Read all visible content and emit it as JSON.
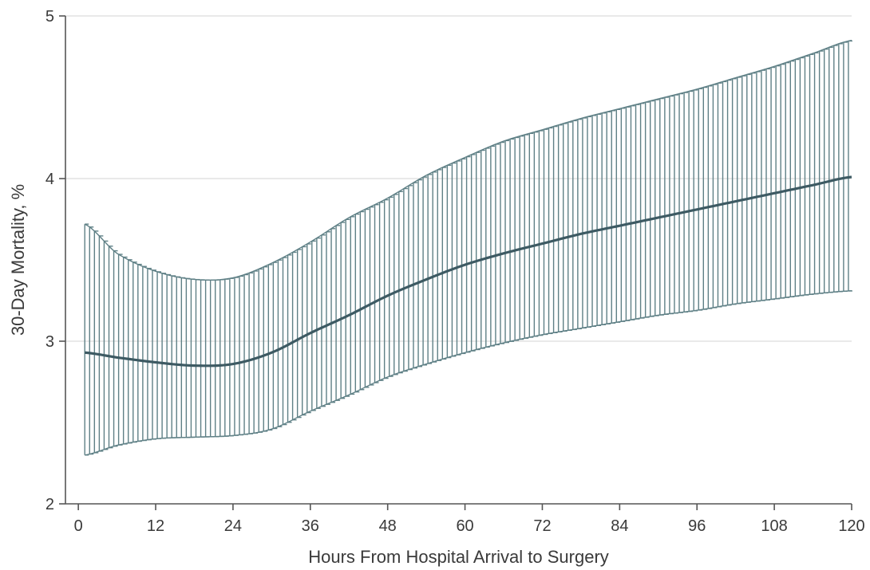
{
  "chart_data": {
    "type": "line",
    "xlabel": "Hours From Hospital Arrival to Surgery",
    "ylabel": "30-Day Mortality, %",
    "xlim": [
      -2,
      120
    ],
    "ylim": [
      2,
      5
    ],
    "xticks": [
      0,
      12,
      24,
      36,
      48,
      60,
      72,
      84,
      96,
      108,
      120
    ],
    "yticks": [
      2,
      3,
      4,
      5
    ],
    "grid": "horizontal",
    "legend": "none",
    "colors": {
      "line": "#3d5a63",
      "ci": "#5f8086",
      "grid": "#dcdcdc",
      "axis": "#555555"
    },
    "series": [
      {
        "x": [
          1,
          6,
          12,
          18,
          24,
          30,
          36,
          42,
          48,
          54,
          60,
          66,
          72,
          78,
          84,
          90,
          96,
          102,
          108,
          114,
          120
        ],
        "y": [
          2.93,
          2.9,
          2.87,
          2.85,
          2.86,
          2.93,
          3.05,
          3.16,
          3.28,
          3.38,
          3.47,
          3.54,
          3.6,
          3.66,
          3.71,
          3.76,
          3.81,
          3.86,
          3.91,
          3.96,
          4.01
        ],
        "lower": [
          2.3,
          2.36,
          2.4,
          2.41,
          2.42,
          2.46,
          2.57,
          2.67,
          2.78,
          2.86,
          2.93,
          2.99,
          3.04,
          3.08,
          3.12,
          3.16,
          3.19,
          3.23,
          3.26,
          3.29,
          3.31
        ],
        "upper": [
          3.72,
          3.54,
          3.43,
          3.38,
          3.39,
          3.48,
          3.61,
          3.76,
          3.88,
          4.02,
          4.13,
          4.23,
          4.3,
          4.37,
          4.43,
          4.49,
          4.55,
          4.62,
          4.69,
          4.77,
          4.85
        ]
      }
    ]
  }
}
